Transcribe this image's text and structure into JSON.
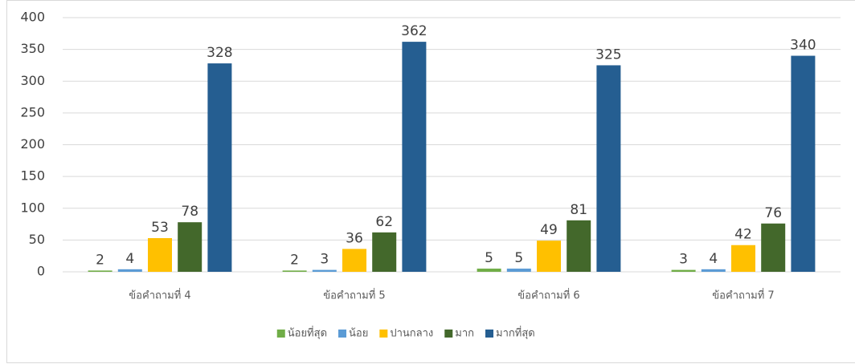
{
  "chart_data": {
    "type": "bar",
    "categories": [
      "ข้อคำถามที่ 4",
      "ข้อคำถามที่ 5",
      "ข้อคำถามที่ 6",
      "ข้อคำถามที่ 7"
    ],
    "series": [
      {
        "name": "น้อยที่สุด",
        "color": "#70ad47",
        "values": [
          2,
          2,
          5,
          3
        ]
      },
      {
        "name": "น้อย",
        "color": "#5b9bd5",
        "values": [
          4,
          3,
          5,
          4
        ]
      },
      {
        "name": "ปานกลาง",
        "color": "#ffc000",
        "values": [
          53,
          36,
          49,
          42
        ]
      },
      {
        "name": "มาก",
        "color": "#43682b",
        "values": [
          78,
          62,
          81,
          76
        ]
      },
      {
        "name": "มากที่สุด",
        "color": "#255e91",
        "values": [
          328,
          362,
          325,
          340
        ]
      }
    ],
    "ylim": [
      0,
      400
    ],
    "yticks": [
      0,
      50,
      100,
      150,
      200,
      250,
      300,
      350,
      400
    ],
    "grid": true,
    "legend": "bottom"
  }
}
